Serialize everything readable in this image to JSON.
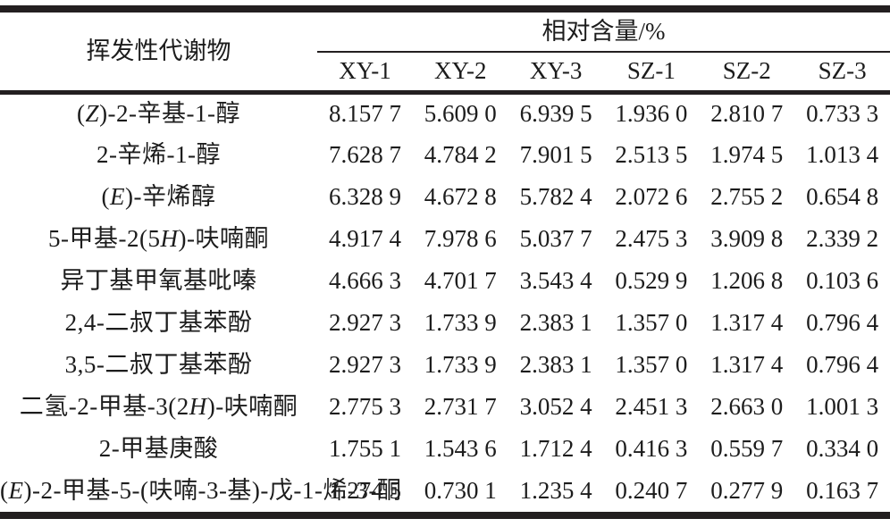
{
  "colors": {
    "rule": "#231f20",
    "text": "#1c1c1c",
    "background": "#ffffff"
  },
  "table": {
    "col1_header": "挥发性代谢物",
    "group_header": "相对含量/%",
    "sample_headers": [
      "XY-1",
      "XY-2",
      "XY-3",
      "SZ-1",
      "SZ-2",
      "SZ-3"
    ],
    "rows": [
      {
        "name": "(*Z*)-2-辛基-1-醇",
        "values": [
          "8.157 7",
          "5.609 0",
          "6.939 5",
          "1.936 0",
          "2.810 7",
          "0.733 3"
        ]
      },
      {
        "name": "2-辛烯-1-醇",
        "values": [
          "7.628 7",
          "4.784 2",
          "7.901 5",
          "2.513 5",
          "1.974 5",
          "1.013 4"
        ]
      },
      {
        "name": "(*E*)-辛烯醇",
        "values": [
          "6.328 9",
          "4.672 8",
          "5.782 4",
          "2.072 6",
          "2.755 2",
          "0.654 8"
        ]
      },
      {
        "name": "5-甲基-2(5*H*)-呋喃酮",
        "values": [
          "4.917 4",
          "7.978 6",
          "5.037 7",
          "2.475 3",
          "3.909 8",
          "2.339 2"
        ]
      },
      {
        "name": "异丁基甲氧基吡嗪",
        "values": [
          "4.666 3",
          "4.701 7",
          "3.543 4",
          "0.529 9",
          "1.206 8",
          "0.103 6"
        ]
      },
      {
        "name": "2,4-二叔丁基苯酚",
        "values": [
          "2.927 3",
          "1.733 9",
          "2.383 1",
          "1.357 0",
          "1.317 4",
          "0.796 4"
        ]
      },
      {
        "name": "3,5-二叔丁基苯酚",
        "values": [
          "2.927 3",
          "1.733 9",
          "2.383 1",
          "1.357 0",
          "1.317 4",
          "0.796 4"
        ]
      },
      {
        "name": "二氢-2-甲基-3(2*H*)-呋喃酮",
        "values": [
          "2.775 3",
          "2.731 7",
          "3.052 4",
          "2.451 3",
          "2.663 0",
          "1.001 3"
        ]
      },
      {
        "name": "2-甲基庚酸",
        "values": [
          "1.755 1",
          "1.543 6",
          "1.712 4",
          "0.416 3",
          "0.559 7",
          "0.334 0"
        ]
      },
      {
        "name": "(*E*)-2-甲基-5-(呋喃-3-基)-戊-1-烯-3-酮",
        "values": [
          "1.274 5",
          "0.730 1",
          "1.235 4",
          "0.240 7",
          "0.277 9",
          "0.163 7"
        ]
      }
    ]
  }
}
